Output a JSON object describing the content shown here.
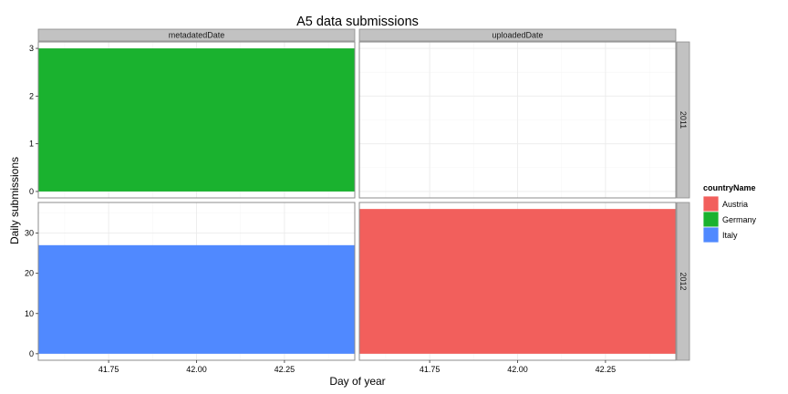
{
  "chart_data": {
    "type": "bar",
    "title": "A5 data submissions",
    "xlabel": "Day of year",
    "ylabel": "Daily submissions",
    "facet_columns": [
      "metadatedDate",
      "uploadedDate"
    ],
    "facet_rows": [
      "2011",
      "2012"
    ],
    "x_ticks": [
      "41.75",
      "42.00",
      "42.25"
    ],
    "x_tick_values": [
      41.75,
      42.0,
      42.25
    ],
    "xlim": [
      41.55,
      42.45
    ],
    "rows": [
      {
        "label": "2011",
        "ylim": [
          0,
          3
        ],
        "y_ticks": [
          0,
          1,
          2,
          3
        ]
      },
      {
        "label": "2012",
        "ylim": [
          0,
          36
        ],
        "y_ticks": [
          0,
          10,
          20,
          30
        ]
      }
    ],
    "bars": [
      {
        "column": "metadatedDate",
        "row": "2011",
        "x": 42,
        "width": 0.9,
        "value": 3,
        "series": "Germany"
      },
      {
        "column": "metadatedDate",
        "row": "2012",
        "x": 42,
        "width": 0.9,
        "value": 27,
        "series": "Italy"
      },
      {
        "column": "uploadedDate",
        "row": "2012",
        "x": 42,
        "width": 0.9,
        "value": 36,
        "series": "Austria"
      }
    ],
    "legend": {
      "title": "countryName",
      "position": "right",
      "items": [
        {
          "name": "Austria",
          "color": "#F25F5C"
        },
        {
          "name": "Germany",
          "color": "#1AB22F"
        },
        {
          "name": "Italy",
          "color": "#5089FF"
        }
      ]
    },
    "grid": true
  }
}
